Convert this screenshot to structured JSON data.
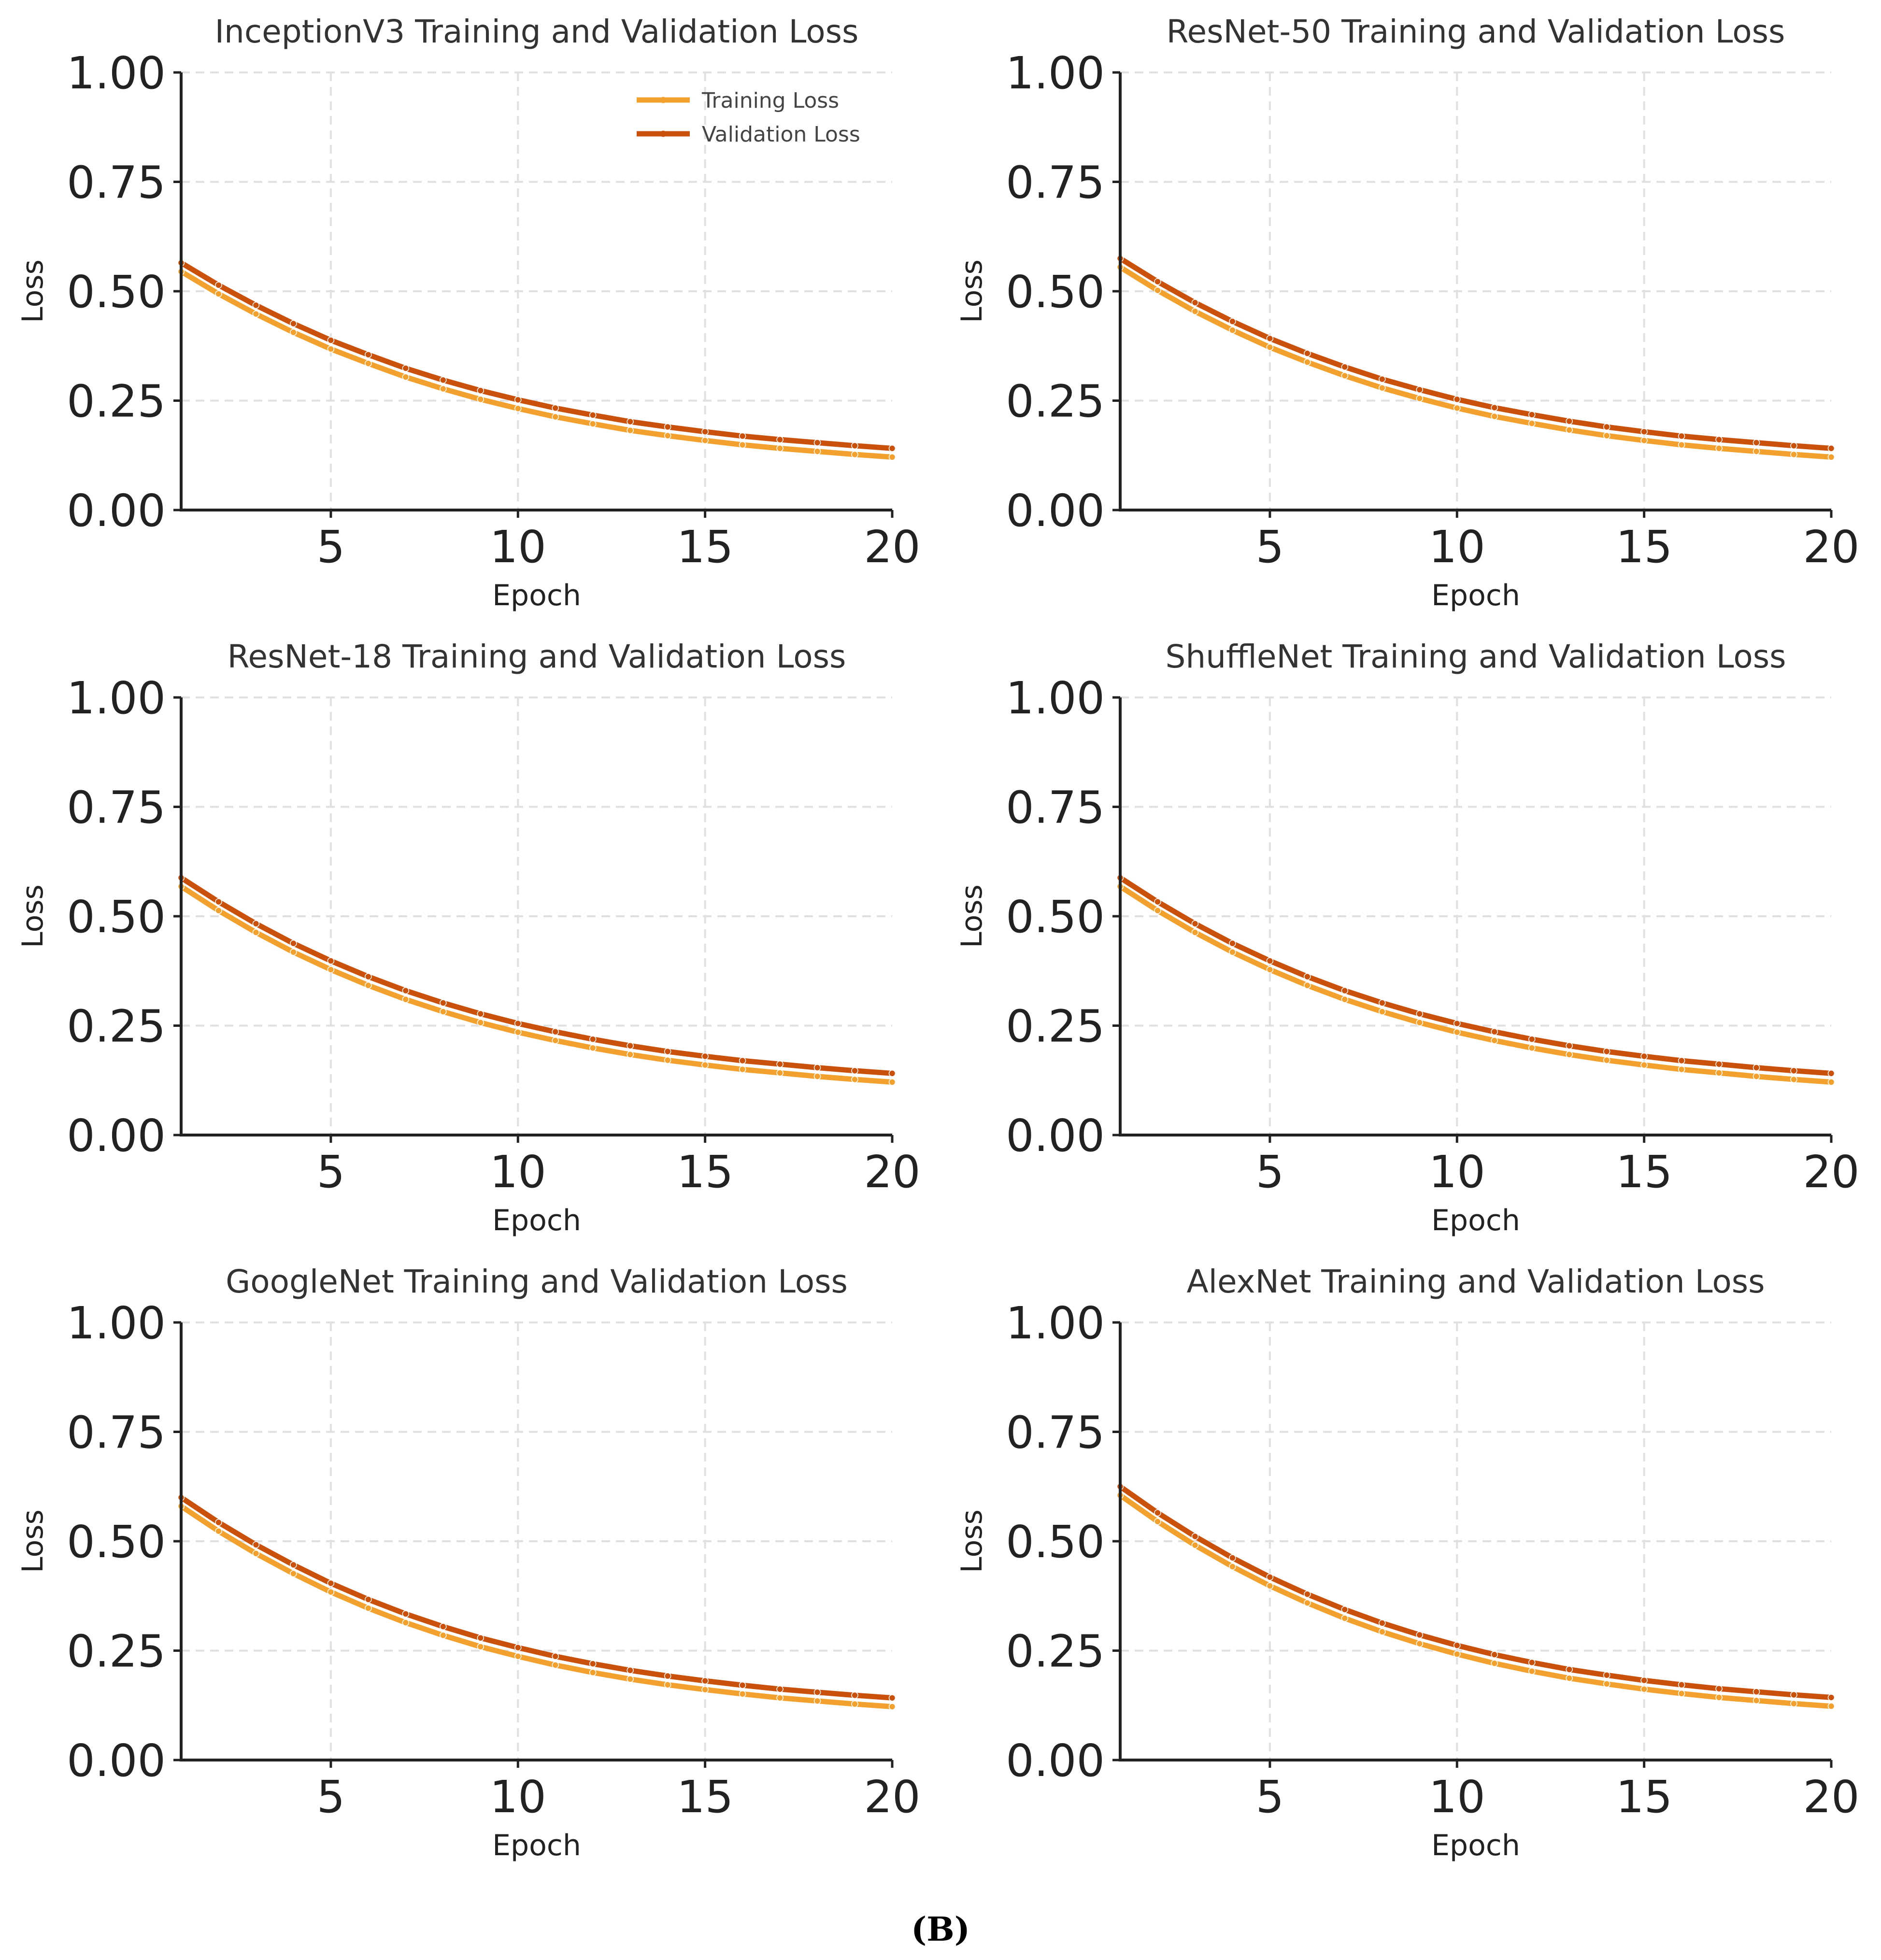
{
  "caption": "(B)",
  "colors": {
    "training": "#F2A12E",
    "validation": "#C9510C"
  },
  "chart_data": [
    {
      "type": "line",
      "title": "InceptionV3 Training and Validation Loss",
      "xlabel": "Epoch",
      "ylabel": "Loss",
      "xlim": [
        1,
        20
      ],
      "ylim": [
        0,
        1
      ],
      "xticks": [
        5,
        10,
        15,
        20
      ],
      "yticks": [
        0.0,
        0.25,
        0.5,
        0.75,
        1.0
      ],
      "xtick_labels": [
        "5",
        "10",
        "15",
        "20"
      ],
      "ytick_labels": [
        "0.00",
        "0.25",
        "0.50",
        "0.75",
        "1.00"
      ],
      "legend": {
        "position": "top-right",
        "entries": [
          "Training Loss",
          "Validation Loss"
        ]
      },
      "x": [
        1,
        2,
        3,
        4,
        5,
        6,
        7,
        8,
        9,
        10,
        11,
        12,
        13,
        14,
        15,
        16,
        17,
        18,
        19,
        20
      ],
      "series": [
        {
          "name": "Training Loss",
          "values": [
            0.545,
            0.494,
            0.448,
            0.406,
            0.368,
            0.335,
            0.304,
            0.277,
            0.253,
            0.232,
            0.213,
            0.197,
            0.182,
            0.17,
            0.159,
            0.149,
            0.141,
            0.134,
            0.127,
            0.121
          ]
        },
        {
          "name": "Validation Loss",
          "values": [
            0.565,
            0.514,
            0.468,
            0.426,
            0.388,
            0.355,
            0.324,
            0.297,
            0.273,
            0.252,
            0.233,
            0.217,
            0.202,
            0.19,
            0.179,
            0.169,
            0.161,
            0.154,
            0.147,
            0.141
          ]
        }
      ]
    },
    {
      "type": "line",
      "title": "ResNet-50 Training and Validation Loss",
      "xlabel": "Epoch",
      "ylabel": "Loss",
      "xlim": [
        1,
        20
      ],
      "ylim": [
        0,
        1
      ],
      "xticks": [
        5,
        10,
        15,
        20
      ],
      "yticks": [
        0.0,
        0.25,
        0.5,
        0.75,
        1.0
      ],
      "xtick_labels": [
        "5",
        "10",
        "15",
        "20"
      ],
      "ytick_labels": [
        "0.00",
        "0.25",
        "0.50",
        "0.75",
        "1.00"
      ],
      "x": [
        1,
        2,
        3,
        4,
        5,
        6,
        7,
        8,
        9,
        10,
        11,
        12,
        13,
        14,
        15,
        16,
        17,
        18,
        19,
        20
      ],
      "series": [
        {
          "name": "Training Loss",
          "values": [
            0.555,
            0.502,
            0.454,
            0.411,
            0.372,
            0.338,
            0.307,
            0.279,
            0.255,
            0.233,
            0.214,
            0.198,
            0.183,
            0.17,
            0.159,
            0.149,
            0.141,
            0.134,
            0.127,
            0.121
          ]
        },
        {
          "name": "Validation Loss",
          "values": [
            0.575,
            0.522,
            0.474,
            0.431,
            0.392,
            0.358,
            0.327,
            0.299,
            0.275,
            0.253,
            0.234,
            0.218,
            0.203,
            0.19,
            0.179,
            0.169,
            0.161,
            0.154,
            0.147,
            0.141
          ]
        }
      ]
    },
    {
      "type": "line",
      "title": "ResNet-18 Training and Validation Loss",
      "xlabel": "Epoch",
      "ylabel": "Loss",
      "xlim": [
        1,
        20
      ],
      "ylim": [
        0,
        1
      ],
      "xticks": [
        5,
        10,
        15,
        20
      ],
      "yticks": [
        0.0,
        0.25,
        0.5,
        0.75,
        1.0
      ],
      "xtick_labels": [
        "5",
        "10",
        "15",
        "20"
      ],
      "ytick_labels": [
        "0.00",
        "0.25",
        "0.50",
        "0.75",
        "1.00"
      ],
      "x": [
        1,
        2,
        3,
        4,
        5,
        6,
        7,
        8,
        9,
        10,
        11,
        12,
        13,
        14,
        15,
        16,
        17,
        18,
        19,
        20
      ],
      "series": [
        {
          "name": "Training Loss",
          "values": [
            0.568,
            0.513,
            0.463,
            0.418,
            0.378,
            0.342,
            0.31,
            0.282,
            0.257,
            0.235,
            0.216,
            0.199,
            0.184,
            0.171,
            0.16,
            0.15,
            0.142,
            0.134,
            0.127,
            0.121
          ]
        },
        {
          "name": "Validation Loss",
          "values": [
            0.588,
            0.533,
            0.483,
            0.438,
            0.398,
            0.362,
            0.33,
            0.302,
            0.277,
            0.255,
            0.236,
            0.219,
            0.204,
            0.191,
            0.18,
            0.17,
            0.162,
            0.154,
            0.147,
            0.141
          ]
        }
      ]
    },
    {
      "type": "line",
      "title": "ShuffleNet Training and Validation Loss",
      "xlabel": "Epoch",
      "ylabel": "Loss",
      "xlim": [
        1,
        20
      ],
      "ylim": [
        0,
        1
      ],
      "xticks": [
        5,
        10,
        15,
        20
      ],
      "yticks": [
        0.0,
        0.25,
        0.5,
        0.75,
        1.0
      ],
      "xtick_labels": [
        "5",
        "10",
        "15",
        "20"
      ],
      "ytick_labels": [
        "0.00",
        "0.25",
        "0.50",
        "0.75",
        "1.00"
      ],
      "x": [
        1,
        2,
        3,
        4,
        5,
        6,
        7,
        8,
        9,
        10,
        11,
        12,
        13,
        14,
        15,
        16,
        17,
        18,
        19,
        20
      ],
      "series": [
        {
          "name": "Training Loss",
          "values": [
            0.568,
            0.513,
            0.463,
            0.418,
            0.378,
            0.342,
            0.31,
            0.282,
            0.257,
            0.235,
            0.216,
            0.199,
            0.184,
            0.171,
            0.16,
            0.15,
            0.142,
            0.134,
            0.127,
            0.121
          ]
        },
        {
          "name": "Validation Loss",
          "values": [
            0.588,
            0.533,
            0.483,
            0.438,
            0.398,
            0.362,
            0.33,
            0.302,
            0.277,
            0.255,
            0.236,
            0.219,
            0.204,
            0.191,
            0.18,
            0.17,
            0.162,
            0.154,
            0.147,
            0.141
          ]
        }
      ]
    },
    {
      "type": "line",
      "title": "GoogleNet Training and Validation Loss",
      "xlabel": "Epoch",
      "ylabel": "Loss",
      "xlim": [
        1,
        20
      ],
      "ylim": [
        0,
        1
      ],
      "xticks": [
        5,
        10,
        15,
        20
      ],
      "yticks": [
        0.0,
        0.25,
        0.5,
        0.75,
        1.0
      ],
      "xtick_labels": [
        "5",
        "10",
        "15",
        "20"
      ],
      "ytick_labels": [
        "0.00",
        "0.25",
        "0.50",
        "0.75",
        "1.00"
      ],
      "x": [
        1,
        2,
        3,
        4,
        5,
        6,
        7,
        8,
        9,
        10,
        11,
        12,
        13,
        14,
        15,
        16,
        17,
        18,
        19,
        20
      ],
      "series": [
        {
          "name": "Training Loss",
          "values": [
            0.58,
            0.523,
            0.472,
            0.426,
            0.384,
            0.347,
            0.314,
            0.285,
            0.259,
            0.237,
            0.217,
            0.2,
            0.185,
            0.172,
            0.161,
            0.151,
            0.142,
            0.135,
            0.128,
            0.122
          ]
        },
        {
          "name": "Validation Loss",
          "values": [
            0.6,
            0.543,
            0.492,
            0.446,
            0.404,
            0.367,
            0.334,
            0.305,
            0.279,
            0.257,
            0.237,
            0.22,
            0.205,
            0.192,
            0.181,
            0.171,
            0.162,
            0.155,
            0.148,
            0.142
          ]
        }
      ]
    },
    {
      "type": "line",
      "title": "AlexNet Training and Validation Loss",
      "xlabel": "Epoch",
      "ylabel": "Loss",
      "xlim": [
        1,
        20
      ],
      "ylim": [
        0,
        1
      ],
      "xticks": [
        5,
        10,
        15,
        20
      ],
      "yticks": [
        0.0,
        0.25,
        0.5,
        0.75,
        1.0
      ],
      "xtick_labels": [
        "5",
        "10",
        "15",
        "20"
      ],
      "ytick_labels": [
        "0.00",
        "0.25",
        "0.50",
        "0.75",
        "1.00"
      ],
      "x": [
        1,
        2,
        3,
        4,
        5,
        6,
        7,
        8,
        9,
        10,
        11,
        12,
        13,
        14,
        15,
        16,
        17,
        18,
        19,
        20
      ],
      "series": [
        {
          "name": "Training Loss",
          "values": [
            0.605,
            0.545,
            0.491,
            0.442,
            0.398,
            0.359,
            0.324,
            0.293,
            0.266,
            0.242,
            0.221,
            0.203,
            0.187,
            0.174,
            0.162,
            0.152,
            0.143,
            0.136,
            0.129,
            0.123
          ]
        },
        {
          "name": "Validation Loss",
          "values": [
            0.625,
            0.565,
            0.511,
            0.462,
            0.418,
            0.379,
            0.344,
            0.313,
            0.286,
            0.262,
            0.241,
            0.223,
            0.207,
            0.194,
            0.182,
            0.172,
            0.163,
            0.156,
            0.149,
            0.143
          ]
        }
      ]
    }
  ]
}
